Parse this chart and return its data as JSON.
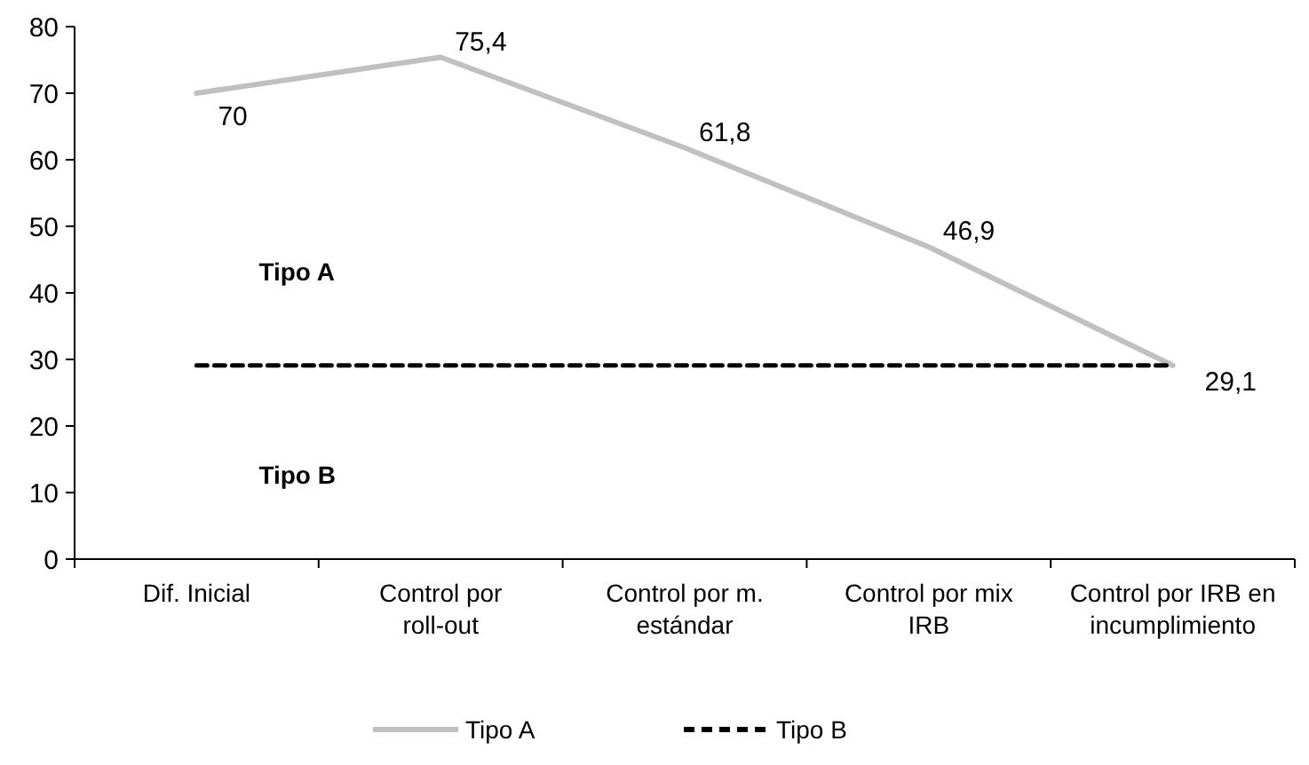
{
  "chart_data": {
    "type": "line",
    "categories": [
      "Dif. Inicial",
      "Control por roll-out",
      "Control por m. estándar",
      "Control por mix IRB",
      "Control por IRB en incumplimiento"
    ],
    "ylim": [
      0,
      80
    ],
    "yticks": [
      0,
      10,
      20,
      30,
      40,
      50,
      60,
      70,
      80
    ],
    "grid": false,
    "legend": "bottom",
    "marker": "none",
    "series": [
      {
        "name": "Tipo A",
        "color": "#c0c0c0",
        "values": [
          70,
          75.4,
          61.8,
          46.9,
          29.1
        ],
        "value_labels": [
          "70",
          "75,4",
          "61,8",
          "46,9",
          "29,1"
        ],
        "line_style": "solid"
      },
      {
        "name": "Tipo B",
        "color": "#000000",
        "values": [
          29.1,
          29.1,
          29.1,
          29.1,
          29.1
        ],
        "line_style": "dashed"
      }
    ],
    "annotations": [
      "Tipo A",
      "Tipo B"
    ]
  }
}
